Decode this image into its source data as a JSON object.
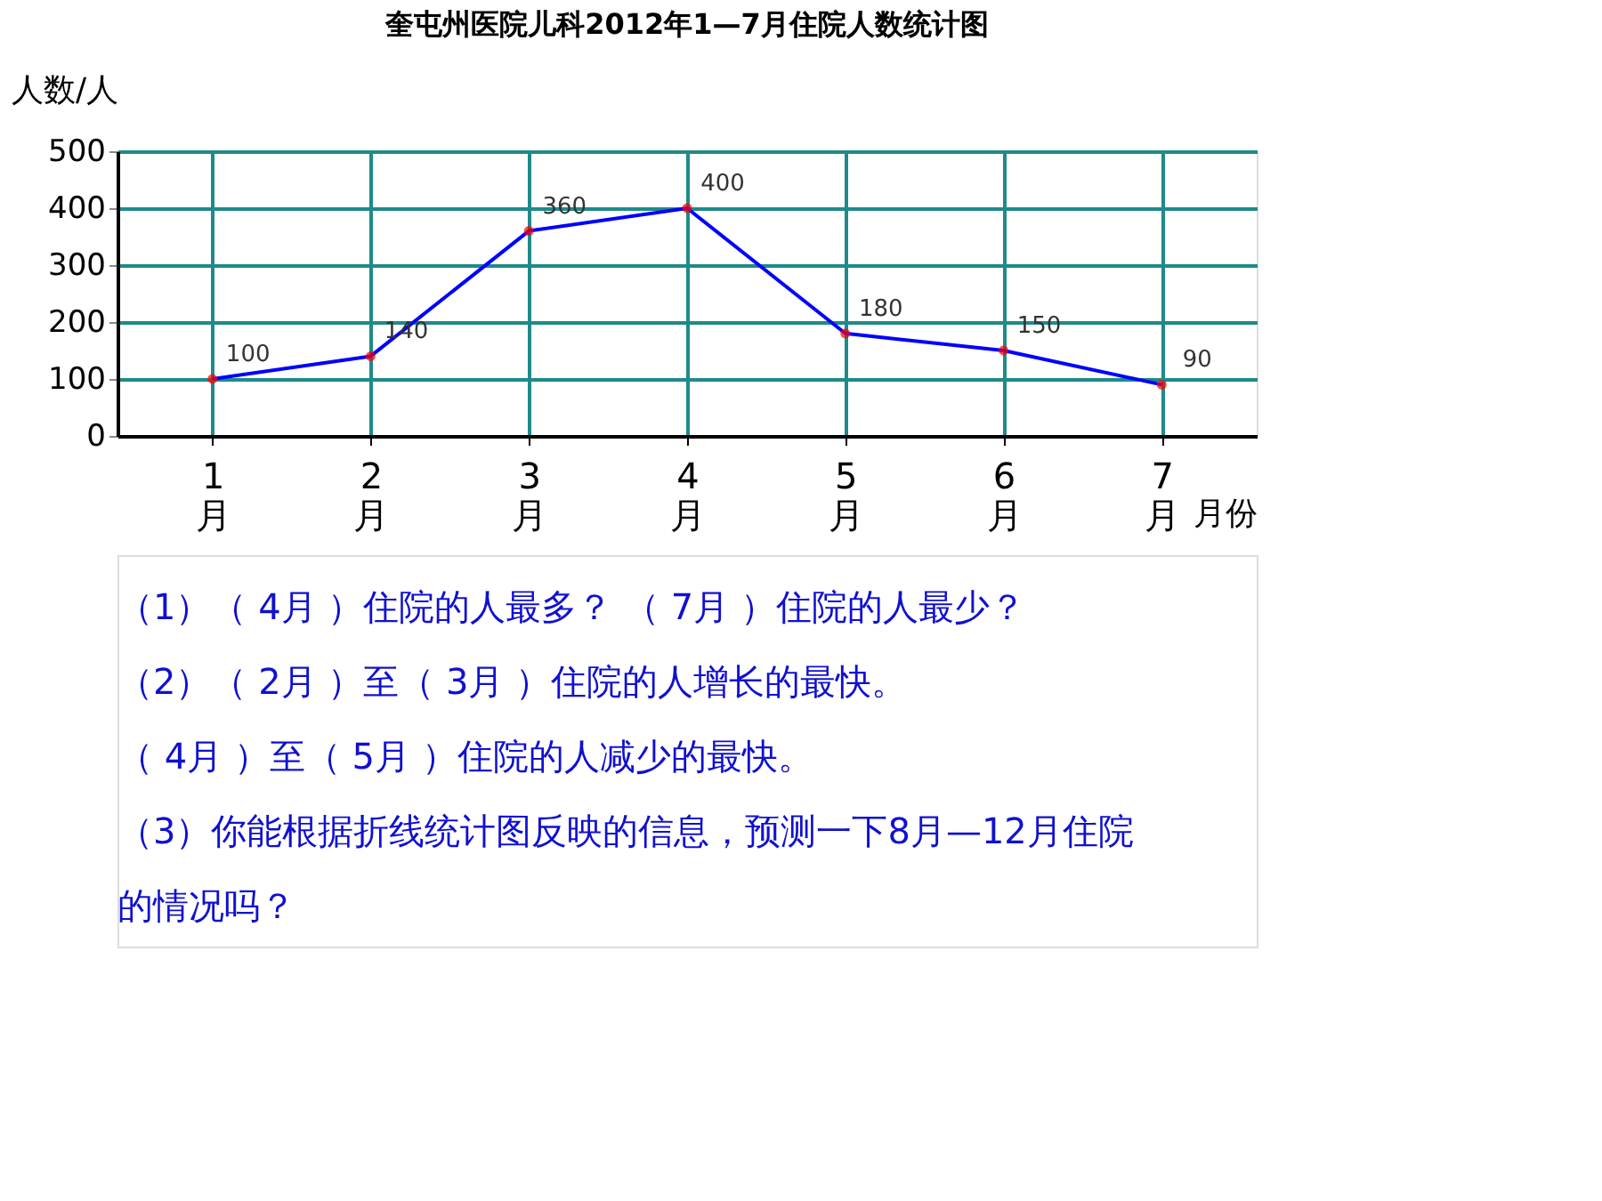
{
  "chart_data": {
    "type": "line",
    "title": "奎屯州医院儿科2012年1—7月住院人数统计图",
    "xlabel": "月份",
    "ylabel": "人数/人",
    "categories": [
      "1月",
      "2月",
      "3月",
      "4月",
      "5月",
      "6月",
      "7月"
    ],
    "series": [
      {
        "color": "#0000ff",
        "values": [
          100,
          140,
          360,
          400,
          180,
          150,
          90
        ]
      }
    ],
    "ylim": [
      0,
      500
    ],
    "yticks": [
      0,
      100,
      200,
      300,
      400,
      500
    ],
    "grid": true,
    "marker": "circle",
    "line_style": "solid",
    "data_labels": true,
    "annotations": [
      "（1）（ 4月 ）住院的人最多？ （ 7月 ）住院的人最少？",
      "（2）（ 2月 ）至（ 3月 ）住院的人增长的最快。",
      "（ 4月 ）至（ 5月 ）住院的人减少的最快。",
      "（3）你能根据折线统计图反映的信息，预测一下8月—12月住院",
      "的情况吗？"
    ]
  }
}
